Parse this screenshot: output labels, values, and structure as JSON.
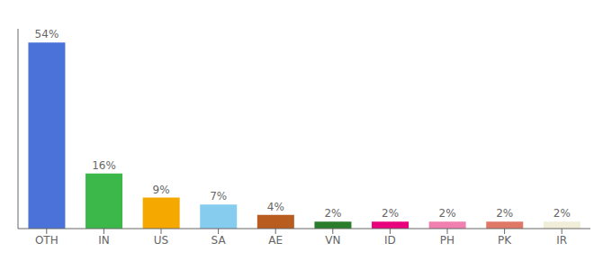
{
  "chart_data": {
    "type": "bar",
    "categories": [
      "OTH",
      "IN",
      "US",
      "SA",
      "AE",
      "VN",
      "ID",
      "PH",
      "PK",
      "IR"
    ],
    "values": [
      54,
      16,
      9,
      7,
      4,
      2,
      2,
      2,
      2,
      2
    ],
    "value_labels": [
      "54%",
      "16%",
      "9%",
      "7%",
      "4%",
      "2%",
      "2%",
      "2%",
      "2%",
      "2%"
    ],
    "colors": [
      "#4a72d9",
      "#3cb84a",
      "#f5a800",
      "#85ccee",
      "#b85c20",
      "#2a7d2a",
      "#e8007d",
      "#f080b0",
      "#e07868",
      "#f0edd8"
    ],
    "ylim": [
      0,
      58
    ],
    "data_labels": true,
    "tick_labels": "x",
    "grid": false
  }
}
